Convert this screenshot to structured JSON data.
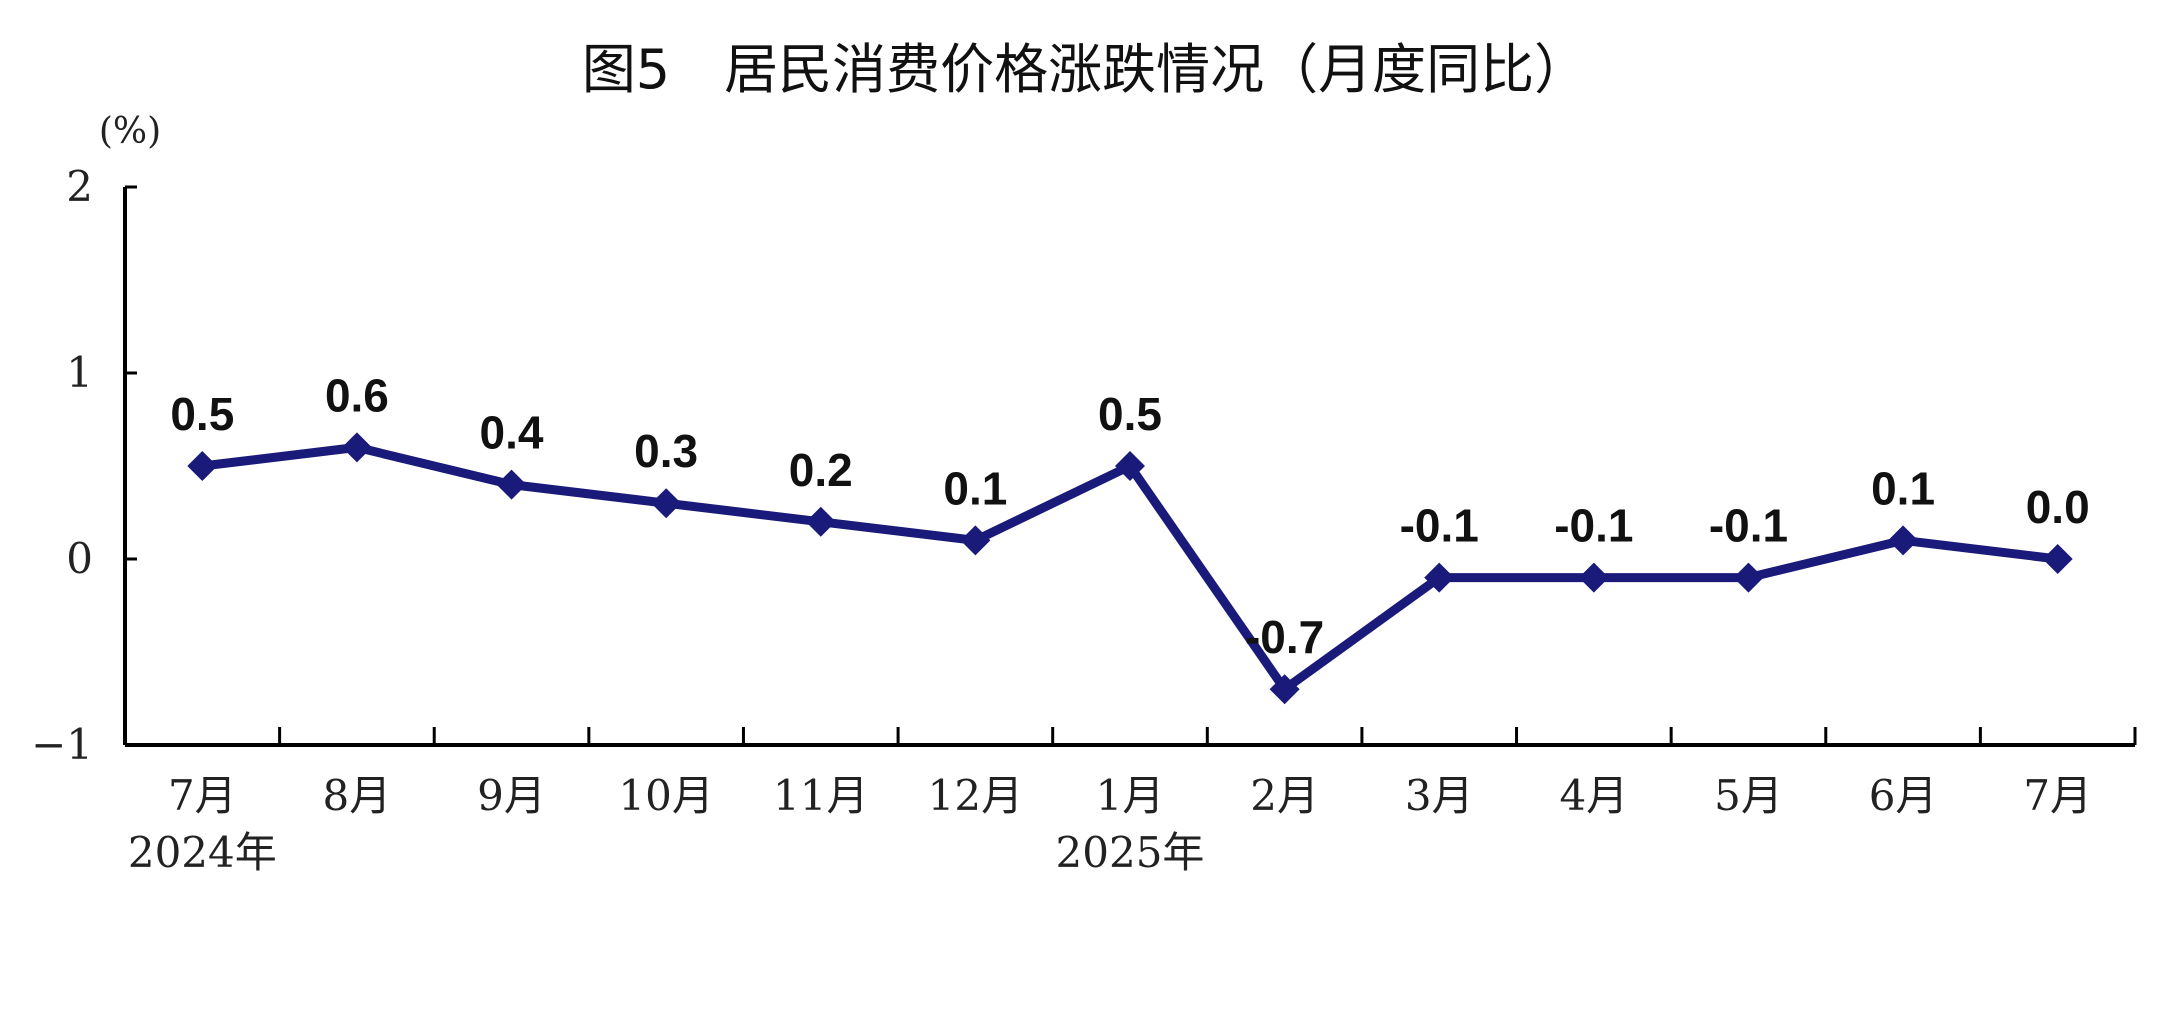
{
  "chart_data": {
    "type": "line",
    "title": "图5　居民消费价格涨跌情况（月度同比）",
    "unit": "(%)",
    "categories": [
      "7月",
      "8月",
      "9月",
      "10月",
      "11月",
      "12月",
      "1月",
      "2月",
      "3月",
      "4月",
      "5月",
      "6月",
      "7月"
    ],
    "year_labels": [
      {
        "label": "2024年",
        "category_index": 0
      },
      {
        "label": "2025年",
        "category_index": 6
      }
    ],
    "series": [
      {
        "values": [
          0.5,
          0.6,
          0.4,
          0.3,
          0.2,
          0.1,
          0.5,
          -0.7,
          -0.1,
          -0.1,
          -0.1,
          0.1,
          0.0
        ],
        "labels": [
          "0.5",
          "0.6",
          "0.4",
          "0.3",
          "0.2",
          "0.1",
          "0.5",
          "-0.7",
          "-0.1",
          "-0.1",
          "-0.1",
          "0.1",
          "0.0"
        ],
        "color": "#1a1a7a",
        "marker": "diamond"
      }
    ],
    "y_ticks": [
      {
        "value": 2,
        "label": "2"
      },
      {
        "value": 1,
        "label": "1"
      },
      {
        "value": 0,
        "label": "0"
      },
      {
        "value": -1,
        "label": "−1"
      }
    ],
    "ylim": [
      -1,
      2
    ],
    "grid": false,
    "legend": "none"
  }
}
